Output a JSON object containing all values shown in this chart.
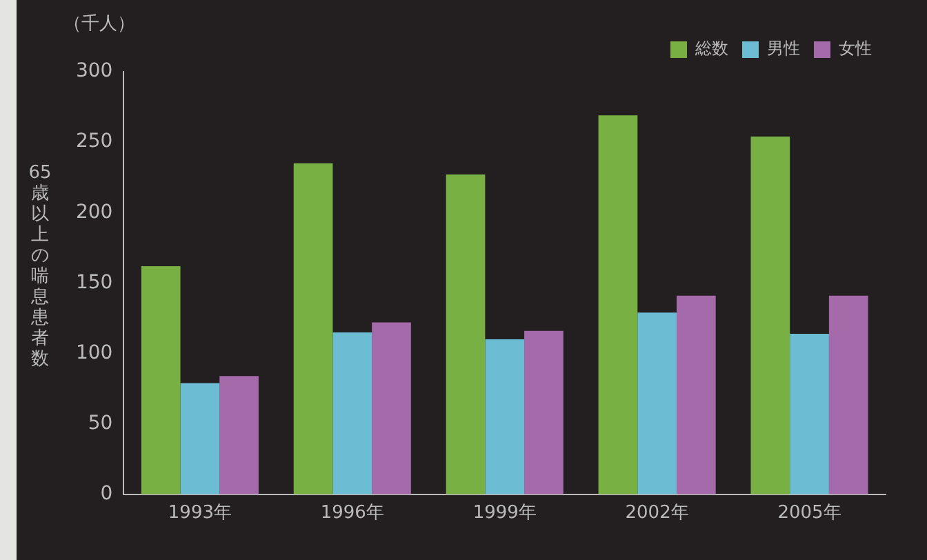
{
  "chart_data": {
    "type": "bar",
    "ylabel": "65歳以上の喘息患者数",
    "annotations": [
      "（千人）"
    ],
    "categories": [
      "1993年",
      "1996年",
      "1999年",
      "2002年",
      "2005年"
    ],
    "series": [
      {
        "name": "総数",
        "color": "#78b043",
        "values": [
          162,
          235,
          227,
          269,
          254
        ]
      },
      {
        "name": "男性",
        "color": "#6cbcd4",
        "values": [
          79,
          115,
          110,
          129,
          114
        ]
      },
      {
        "name": "女性",
        "color": "#a56aaa",
        "values": [
          84,
          122,
          116,
          141,
          141
        ]
      }
    ],
    "ylim": [
      0,
      300
    ],
    "yticks": [
      0,
      50,
      100,
      150,
      200,
      250,
      300
    ],
    "grid": false,
    "legend": "top right"
  }
}
